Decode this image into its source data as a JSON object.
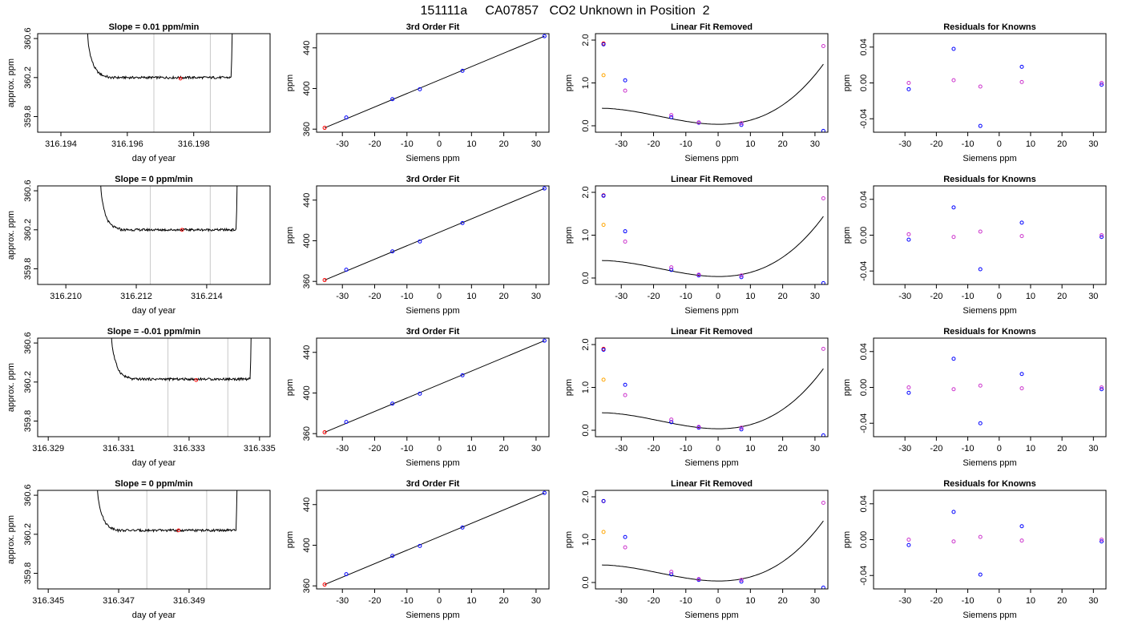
{
  "figure": {
    "title": "151111a     CA07857   CO2 Unknown in Position  2"
  },
  "chart_data": [
    {
      "type": "line",
      "row": 1,
      "col": 1,
      "title": "Slope =  0.01  ppm/min",
      "xlabel": "day of year",
      "ylabel": "approx. ppm",
      "xlim": [
        316.1933,
        316.2003
      ],
      "ylim": [
        359.64,
        360.65
      ],
      "xticks": [
        "316.194",
        "316.196",
        "316.198"
      ],
      "xtick_values": [
        316.194,
        316.196,
        316.198
      ],
      "yticks": [
        "359.8",
        "360.2",
        "360.6"
      ],
      "ytick_values": [
        359.8,
        360.2,
        360.6
      ],
      "window": [
        316.1968,
        316.1985
      ],
      "center": [
        316.1976,
        360.19
      ],
      "baseline": 360.2,
      "t_start": 316.1947,
      "t_end": 316.1992
    },
    {
      "type": "scatter",
      "row": 1,
      "col": 2,
      "title": "3rd Order Fit",
      "xlabel": "Siemens ppm",
      "ylabel": "ppm",
      "xlim": [
        -38,
        34
      ],
      "ylim": [
        357,
        454
      ],
      "xticks": [
        "-30",
        "-20",
        "-10",
        "0",
        "10",
        "20",
        "30"
      ],
      "xtick_values": [
        -30,
        -20,
        -10,
        0,
        10,
        20,
        30
      ],
      "yticks": [
        "360",
        "400",
        "440"
      ],
      "ytick_values": [
        360,
        400,
        440
      ],
      "points_x": [
        -35.5,
        -28.8,
        -14.5,
        -6.0,
        7.2,
        32.6
      ],
      "points_y": [
        361.3,
        371.5,
        389.5,
        399.3,
        417.4,
        451.5
      ],
      "point_colors": [
        "#ff0000",
        "#0000ff",
        "#0000ff",
        "#0000ff",
        "#0000ff",
        "#0000ff"
      ],
      "fit": "line"
    },
    {
      "type": "scatter",
      "row": 1,
      "col": 3,
      "title": "Linear Fit Removed",
      "xlabel": "Siemens ppm",
      "ylabel": "ppm",
      "xlim": [
        -38,
        34
      ],
      "ylim": [
        -0.15,
        2.15
      ],
      "xticks": [
        "-30",
        "-20",
        "-10",
        "0",
        "10",
        "20",
        "30"
      ],
      "xtick_values": [
        -30,
        -20,
        -10,
        0,
        10,
        20,
        30
      ],
      "yticks": [
        "0.0",
        "1.0",
        "2.0"
      ],
      "ytick_values": [
        0,
        1,
        2
      ],
      "points_x": [
        -35.5,
        -35.5,
        -35.5,
        -28.8,
        -28.8,
        -14.5,
        -14.5,
        -6.0,
        -6.0,
        7.2,
        7.2,
        32.6,
        32.6
      ],
      "points_y": [
        1.92,
        1.18,
        1.9,
        1.06,
        0.82,
        0.2,
        0.25,
        0.07,
        0.08,
        0.02,
        0.06,
        -0.12,
        1.86
      ],
      "point_colors": [
        "#ff0000",
        "#ffa500",
        "#0000ff",
        "#0000ff",
        "#cc33cc",
        "#0000ff",
        "#cc33cc",
        "#0000ff",
        "#cc33cc",
        "#0000ff",
        "#cc33cc",
        "#0000ff",
        "#cc33cc"
      ],
      "curve_coeffs": [
        0.035,
        -0.0002,
        0.00083,
        1.52e-05
      ]
    },
    {
      "type": "scatter",
      "row": 1,
      "col": 4,
      "title": "Residuals for Knowns",
      "xlabel": "Siemens ppm",
      "ylabel": "ppm",
      "xlim": [
        -40,
        34
      ],
      "ylim": [
        -0.055,
        0.055
      ],
      "xticks": [
        "-30",
        "-20",
        "-10",
        "0",
        "10",
        "20",
        "30"
      ],
      "xtick_values": [
        -30,
        -20,
        -10,
        0,
        10,
        20,
        30
      ],
      "yticks": [
        "-0.04",
        "0.00",
        "0.04"
      ],
      "ytick_values": [
        -0.04,
        0,
        0.04
      ],
      "points_x": [
        -28.8,
        -28.8,
        -14.5,
        -14.5,
        -6.0,
        -6.0,
        7.2,
        7.2,
        32.6,
        32.6
      ],
      "points_y": [
        -0.007,
        0.0,
        0.038,
        0.003,
        -0.048,
        -0.004,
        0.018,
        0.001,
        -0.002,
        0.0
      ],
      "point_colors": [
        "#0000ff",
        "#cc33cc",
        "#0000ff",
        "#cc33cc",
        "#0000ff",
        "#cc33cc",
        "#0000ff",
        "#cc33cc",
        "#0000ff",
        "#cc33cc"
      ]
    },
    {
      "type": "line",
      "row": 2,
      "col": 1,
      "title": "Slope =  0  ppm/min",
      "xlabel": "day of year",
      "ylabel": "approx. ppm",
      "xlim": [
        316.2092,
        316.2158
      ],
      "ylim": [
        359.64,
        360.65
      ],
      "xticks": [
        "316.210",
        "316.212",
        "316.214"
      ],
      "xtick_values": [
        316.21,
        316.212,
        316.214
      ],
      "yticks": [
        "359.8",
        "360.2",
        "360.6"
      ],
      "ytick_values": [
        359.8,
        360.2,
        360.6
      ],
      "window": [
        316.2124,
        316.2141
      ],
      "center": [
        316.2133,
        360.2
      ],
      "baseline": 360.2,
      "t_start": 316.2109,
      "t_end": 316.2149
    },
    {
      "type": "scatter",
      "row": 2,
      "col": 2,
      "title": "3rd Order Fit",
      "xlabel": "Siemens ppm",
      "ylabel": "ppm",
      "xlim": [
        -38,
        34
      ],
      "ylim": [
        357,
        454
      ],
      "xticks": [
        "-30",
        "-20",
        "-10",
        "0",
        "10",
        "20",
        "30"
      ],
      "xtick_values": [
        -30,
        -20,
        -10,
        0,
        10,
        20,
        30
      ],
      "yticks": [
        "360",
        "400",
        "440"
      ],
      "ytick_values": [
        360,
        400,
        440
      ],
      "points_x": [
        -35.5,
        -28.8,
        -14.5,
        -6.0,
        7.2,
        32.6
      ],
      "points_y": [
        361.3,
        371.5,
        389.5,
        399.3,
        417.4,
        451.5
      ],
      "point_colors": [
        "#ff0000",
        "#0000ff",
        "#0000ff",
        "#0000ff",
        "#0000ff",
        "#0000ff"
      ],
      "fit": "line"
    },
    {
      "type": "scatter",
      "row": 2,
      "col": 3,
      "title": "Linear Fit Removed",
      "xlabel": "Siemens ppm",
      "ylabel": "ppm",
      "xlim": [
        -38,
        34
      ],
      "ylim": [
        -0.15,
        2.15
      ],
      "xticks": [
        "-30",
        "-20",
        "-10",
        "0",
        "10",
        "20",
        "30"
      ],
      "xtick_values": [
        -30,
        -20,
        -10,
        0,
        10,
        20,
        30
      ],
      "yticks": [
        "0.0",
        "1.0",
        "2.0"
      ],
      "ytick_values": [
        0,
        1,
        2
      ],
      "points_x": [
        -35.5,
        -35.5,
        -35.5,
        -28.8,
        -28.8,
        -14.5,
        -14.5,
        -6.0,
        -6.0,
        7.2,
        7.2,
        32.6,
        32.6
      ],
      "points_y": [
        1.93,
        1.24,
        1.92,
        1.09,
        0.85,
        0.19,
        0.25,
        0.06,
        0.08,
        0.02,
        0.06,
        -0.12,
        1.86
      ],
      "point_colors": [
        "#ff0000",
        "#ffa500",
        "#0000ff",
        "#0000ff",
        "#cc33cc",
        "#0000ff",
        "#cc33cc",
        "#0000ff",
        "#cc33cc",
        "#0000ff",
        "#cc33cc",
        "#0000ff",
        "#cc33cc"
      ],
      "curve_coeffs": [
        0.035,
        -0.0002,
        0.00083,
        1.52e-05
      ]
    },
    {
      "type": "scatter",
      "row": 2,
      "col": 4,
      "title": "Residuals for Knowns",
      "xlabel": "Siemens ppm",
      "ylabel": "ppm",
      "xlim": [
        -40,
        34
      ],
      "ylim": [
        -0.055,
        0.055
      ],
      "xticks": [
        "-30",
        "-20",
        "-10",
        "0",
        "10",
        "20",
        "30"
      ],
      "xtick_values": [
        -30,
        -20,
        -10,
        0,
        10,
        20,
        30
      ],
      "yticks": [
        "-0.04",
        "0.00",
        "0.04"
      ],
      "ytick_values": [
        -0.04,
        0,
        0.04
      ],
      "points_x": [
        -28.8,
        -28.8,
        -14.5,
        -14.5,
        -6.0,
        -6.0,
        7.2,
        7.2,
        32.6,
        32.6
      ],
      "points_y": [
        -0.005,
        0.001,
        0.031,
        -0.002,
        -0.038,
        0.004,
        0.014,
        -0.001,
        -0.002,
        0.0
      ],
      "point_colors": [
        "#0000ff",
        "#cc33cc",
        "#0000ff",
        "#cc33cc",
        "#0000ff",
        "#cc33cc",
        "#0000ff",
        "#cc33cc",
        "#0000ff",
        "#cc33cc"
      ]
    },
    {
      "type": "line",
      "row": 3,
      "col": 1,
      "title": "Slope =  -0.01  ppm/min",
      "xlabel": "day of year",
      "ylabel": "approx. ppm",
      "xlim": [
        316.3287,
        316.3353
      ],
      "ylim": [
        359.64,
        360.65
      ],
      "xticks": [
        "316.329",
        "316.331",
        "316.333",
        "316.335"
      ],
      "xtick_values": [
        316.329,
        316.331,
        316.333,
        316.335
      ],
      "yticks": [
        "359.8",
        "360.2",
        "360.6"
      ],
      "ytick_values": [
        359.8,
        360.2,
        360.6
      ],
      "window": [
        316.3324,
        316.3341
      ],
      "center": [
        316.3332,
        360.22
      ],
      "baseline": 360.23,
      "t_start": 316.3307,
      "t_end": 316.3348
    },
    {
      "type": "scatter",
      "row": 3,
      "col": 2,
      "title": "3rd Order Fit",
      "xlabel": "Siemens ppm",
      "ylabel": "ppm",
      "xlim": [
        -38,
        34
      ],
      "ylim": [
        357,
        454
      ],
      "xticks": [
        "-30",
        "-20",
        "-10",
        "0",
        "10",
        "20",
        "30"
      ],
      "xtick_values": [
        -30,
        -20,
        -10,
        0,
        10,
        20,
        30
      ],
      "yticks": [
        "360",
        "400",
        "440"
      ],
      "ytick_values": [
        360,
        400,
        440
      ],
      "points_x": [
        -35.5,
        -28.8,
        -14.5,
        -6.0,
        7.2,
        32.6
      ],
      "points_y": [
        361.3,
        371.5,
        389.5,
        399.3,
        417.4,
        451.5
      ],
      "point_colors": [
        "#ff0000",
        "#0000ff",
        "#0000ff",
        "#0000ff",
        "#0000ff",
        "#0000ff"
      ],
      "fit": "line"
    },
    {
      "type": "scatter",
      "row": 3,
      "col": 3,
      "title": "Linear Fit Removed",
      "xlabel": "Siemens ppm",
      "ylabel": "ppm",
      "xlim": [
        -38,
        34
      ],
      "ylim": [
        -0.15,
        2.15
      ],
      "xticks": [
        "-30",
        "-20",
        "-10",
        "0",
        "10",
        "20",
        "30"
      ],
      "xtick_values": [
        -30,
        -20,
        -10,
        0,
        10,
        20,
        30
      ],
      "yticks": [
        "0.0",
        "1.0",
        "2.0"
      ],
      "ytick_values": [
        0,
        1,
        2
      ],
      "points_x": [
        -35.5,
        -35.5,
        -35.5,
        -28.8,
        -28.8,
        -14.5,
        -14.5,
        -6.0,
        -6.0,
        7.2,
        7.2,
        32.6,
        32.6
      ],
      "points_y": [
        1.9,
        1.18,
        1.88,
        1.06,
        0.82,
        0.19,
        0.25,
        0.06,
        0.08,
        0.02,
        0.06,
        -0.12,
        1.9
      ],
      "point_colors": [
        "#ff0000",
        "#ffa500",
        "#0000ff",
        "#0000ff",
        "#cc33cc",
        "#0000ff",
        "#cc33cc",
        "#0000ff",
        "#cc33cc",
        "#0000ff",
        "#cc33cc",
        "#0000ff",
        "#cc33cc"
      ],
      "curve_coeffs": [
        0.035,
        -0.0002,
        0.00083,
        1.52e-05
      ]
    },
    {
      "type": "scatter",
      "row": 3,
      "col": 4,
      "title": "Residuals for Knowns",
      "xlabel": "Siemens ppm",
      "ylabel": "ppm",
      "xlim": [
        -40,
        34
      ],
      "ylim": [
        -0.055,
        0.055
      ],
      "xticks": [
        "-30",
        "-20",
        "-10",
        "0",
        "10",
        "20",
        "30"
      ],
      "xtick_values": [
        -30,
        -20,
        -10,
        0,
        10,
        20,
        30
      ],
      "yticks": [
        "-0.04",
        "0.00",
        "0.04"
      ],
      "ytick_values": [
        -0.04,
        0,
        0.04
      ],
      "points_x": [
        -28.8,
        -28.8,
        -14.5,
        -14.5,
        -6.0,
        -6.0,
        7.2,
        7.2,
        32.6,
        32.6
      ],
      "points_y": [
        -0.006,
        0.0,
        0.032,
        -0.002,
        -0.04,
        0.002,
        0.015,
        -0.001,
        -0.002,
        0.0
      ],
      "point_colors": [
        "#0000ff",
        "#cc33cc",
        "#0000ff",
        "#cc33cc",
        "#0000ff",
        "#cc33cc",
        "#0000ff",
        "#cc33cc",
        "#0000ff",
        "#cc33cc"
      ]
    },
    {
      "type": "line",
      "row": 4,
      "col": 1,
      "title": "Slope =  0  ppm/min",
      "xlabel": "day of year",
      "ylabel": "approx. ppm",
      "xlim": [
        316.3447,
        316.3513
      ],
      "ylim": [
        359.64,
        360.65
      ],
      "xticks": [
        "316.345",
        "316.347",
        "316.349"
      ],
      "xtick_values": [
        316.345,
        316.347,
        316.349
      ],
      "yticks": [
        "359.8",
        "360.2",
        "360.6"
      ],
      "ytick_values": [
        359.8,
        360.2,
        360.6
      ],
      "window": [
        316.3478,
        316.3495
      ],
      "center": [
        316.3487,
        360.24
      ],
      "baseline": 360.24,
      "t_start": 316.3463,
      "t_end": 316.3504
    },
    {
      "type": "scatter",
      "row": 4,
      "col": 2,
      "title": "3rd Order Fit",
      "xlabel": "Siemens ppm",
      "ylabel": "ppm",
      "xlim": [
        -38,
        34
      ],
      "ylim": [
        357,
        454
      ],
      "xticks": [
        "-30",
        "-20",
        "-10",
        "0",
        "10",
        "20",
        "30"
      ],
      "xtick_values": [
        -30,
        -20,
        -10,
        0,
        10,
        20,
        30
      ],
      "yticks": [
        "360",
        "400",
        "440"
      ],
      "ytick_values": [
        360,
        400,
        440
      ],
      "points_x": [
        -35.5,
        -28.8,
        -14.5,
        -6.0,
        7.2,
        32.6
      ],
      "points_y": [
        361.3,
        371.5,
        389.5,
        399.3,
        417.4,
        451.5
      ],
      "point_colors": [
        "#ff0000",
        "#0000ff",
        "#0000ff",
        "#0000ff",
        "#0000ff",
        "#0000ff"
      ],
      "fit": "line"
    },
    {
      "type": "scatter",
      "row": 4,
      "col": 3,
      "title": "Linear Fit Removed",
      "xlabel": "Siemens ppm",
      "ylabel": "ppm",
      "xlim": [
        -38,
        34
      ],
      "ylim": [
        -0.15,
        2.15
      ],
      "xticks": [
        "-30",
        "-20",
        "-10",
        "0",
        "10",
        "20",
        "30"
      ],
      "xtick_values": [
        -30,
        -20,
        -10,
        0,
        10,
        20,
        30
      ],
      "yticks": [
        "0.0",
        "1.0",
        "2.0"
      ],
      "ytick_values": [
        0,
        1,
        2
      ],
      "points_x": [
        -35.5,
        -35.5,
        -35.5,
        -28.8,
        -28.8,
        -14.5,
        -14.5,
        -6.0,
        -6.0,
        7.2,
        7.2,
        32.6,
        32.6
      ],
      "points_y": [
        1.9,
        1.18,
        1.9,
        1.06,
        0.82,
        0.19,
        0.25,
        0.06,
        0.08,
        0.02,
        0.06,
        -0.12,
        1.86
      ],
      "point_colors": [
        "#ff0000",
        "#ffa500",
        "#0000ff",
        "#0000ff",
        "#cc33cc",
        "#0000ff",
        "#cc33cc",
        "#0000ff",
        "#cc33cc",
        "#0000ff",
        "#cc33cc",
        "#0000ff",
        "#cc33cc"
      ],
      "curve_coeffs": [
        0.035,
        -0.0002,
        0.00083,
        1.52e-05
      ]
    },
    {
      "type": "scatter",
      "row": 4,
      "col": 4,
      "title": "Residuals for Knowns",
      "xlabel": "Siemens ppm",
      "ylabel": "ppm",
      "xlim": [
        -40,
        34
      ],
      "ylim": [
        -0.055,
        0.055
      ],
      "xticks": [
        "-30",
        "-20",
        "-10",
        "0",
        "10",
        "20",
        "30"
      ],
      "xtick_values": [
        -30,
        -20,
        -10,
        0,
        10,
        20,
        30
      ],
      "yticks": [
        "-0.04",
        "0.00",
        "0.04"
      ],
      "ytick_values": [
        -0.04,
        0,
        0.04
      ],
      "points_x": [
        -28.8,
        -28.8,
        -14.5,
        -14.5,
        -6.0,
        -6.0,
        7.2,
        7.2,
        32.6,
        32.6
      ],
      "points_y": [
        -0.006,
        0.0,
        0.031,
        -0.002,
        -0.039,
        0.003,
        0.015,
        -0.001,
        -0.002,
        0.0
      ],
      "point_colors": [
        "#0000ff",
        "#cc33cc",
        "#0000ff",
        "#cc33cc",
        "#0000ff",
        "#cc33cc",
        "#0000ff",
        "#cc33cc",
        "#0000ff",
        "#cc33cc"
      ]
    }
  ]
}
